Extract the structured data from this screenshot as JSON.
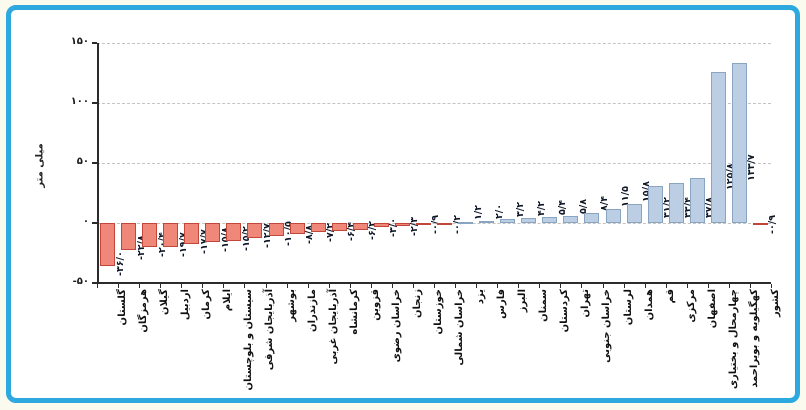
{
  "frame": {
    "border_color": "#2da9e0",
    "outer_background": "#fbfaee",
    "inner_background": "#ffffff"
  },
  "chart_data": {
    "type": "bar",
    "title": "",
    "xlabel": "",
    "ylabel": "میلی متر",
    "ylim": [
      -50,
      150
    ],
    "grid": "dashed-horizontal",
    "legend": "none",
    "yticks": [
      {
        "value": 150,
        "label": "۱۵۰"
      },
      {
        "value": 100,
        "label": "۱۰۰"
      },
      {
        "value": 50,
        "label": "۵۰"
      },
      {
        "value": 0,
        "label": "۰"
      },
      {
        "value": -50,
        "label": "-۵۰"
      }
    ],
    "categories": [
      "گلستان",
      "هرمزگان",
      "گیلان",
      "اردبیل",
      "کرمان",
      "ایلام",
      "سیستان و بلوچستان",
      "آذربایجان شرقی",
      "بوشهر",
      "مازندران",
      "آذربایجان غربی",
      "کرمانشاه",
      "قزوین",
      "خراسان رضوی",
      "زنجان",
      "خوزستان",
      "خراسان شمالی",
      "یزد",
      "فارس",
      "البرز",
      "سمنان",
      "کردستان",
      "تهران",
      "خراسان جنوبی",
      "لرستان",
      "همدان",
      "قم",
      "مرکزی",
      "اصفهان",
      "چهارمحال و بختیاری",
      "کهگیلویه و بویراحمد",
      "کشور"
    ],
    "values": [
      -36.0,
      -22.8,
      -20.4,
      -19.7,
      -17.7,
      -15.8,
      -15.2,
      -12.7,
      -10.5,
      -8.8,
      -7.2,
      -6.4,
      -6.2,
      -3.0,
      -2.3,
      -0.9,
      -0.2,
      1.2,
      2.0,
      3.2,
      4.2,
      5.4,
      5.8,
      8.4,
      11.5,
      15.8,
      31.2,
      33.4,
      37.8,
      125.8,
      133.7,
      -0.9
    ],
    "value_labels": [
      "-۳۶/۰",
      "-۲۲/۸",
      "-۲۰/۴",
      "-۱۹/۷",
      "-۱۷/۷",
      "-۱۵/۸",
      "-۱۵/۲",
      "-۱۲/۷",
      "-۱۰/۵",
      "-۸/۸",
      "-۷/۲",
      "-۶/۴",
      "-۶/۲",
      "-۳/۰",
      "-۲/۳",
      "-۰/۹",
      "-۰/۲",
      "۱/۲",
      "۲/۰",
      "۳/۲",
      "۴/۲",
      "۵/۴",
      "۵/۸",
      "۸/۴",
      "۱۱/۵",
      "۱۵/۸",
      "۳۱/۲",
      "۳۳/۴",
      "۳۷/۸",
      "۱۲۵/۸",
      "۱۳۳/۷",
      "-۰/۹"
    ],
    "colors": {
      "negative_fill": "#f0887a",
      "negative_border": "#c2473a",
      "positive_fill": "#bccee3",
      "positive_border": "#8aa5c2"
    }
  }
}
